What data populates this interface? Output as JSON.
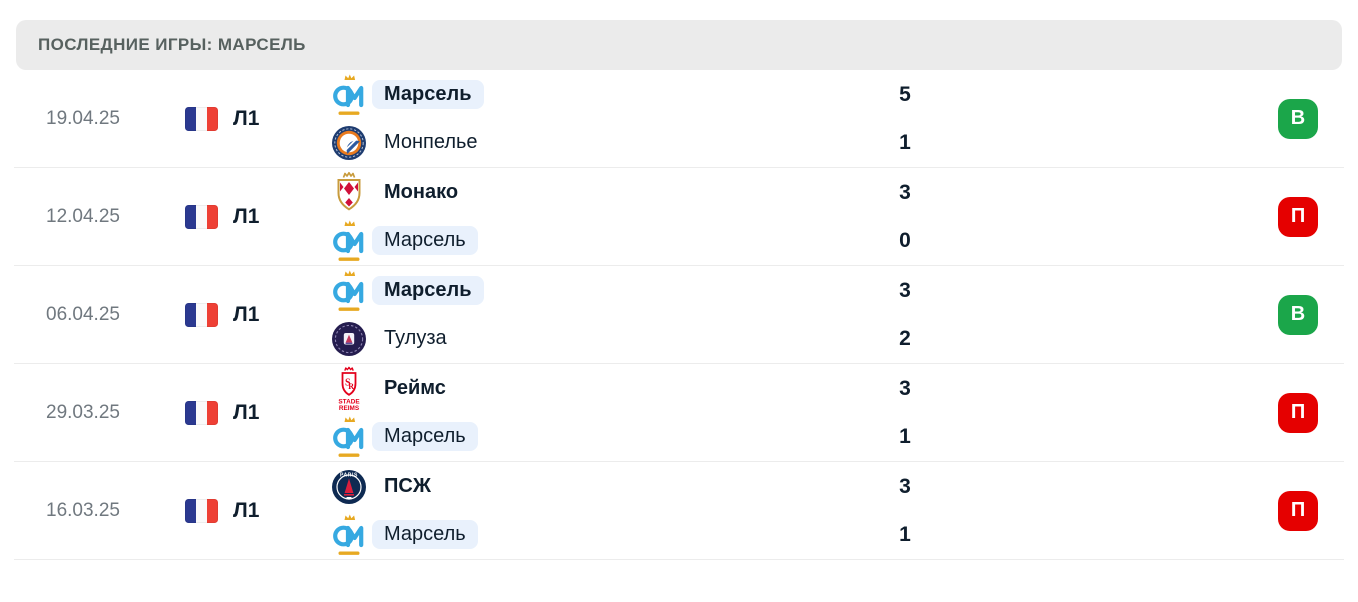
{
  "header": {
    "title": "ПОСЛЕДНИЕ ИГРЫ: МАРСЕЛЬ"
  },
  "colors": {
    "win_badge": "#1BA64A",
    "loss_badge": "#E50000",
    "marseille_highlight": "#E9F1FC",
    "header_bg": "#EBEBEB",
    "text_dark": "#0F1E2D",
    "text_date": "#70787F"
  },
  "matches": [
    {
      "date": "19.04.25",
      "league": {
        "label": "Л1",
        "flag_icon": "france-flag"
      },
      "teams": [
        {
          "name": "Марсель",
          "logo_icon": "marseille-logo",
          "score": "5",
          "winner": true,
          "highlighted": true
        },
        {
          "name": "Монпелье",
          "logo_icon": "montpellier-logo",
          "score": "1",
          "winner": false,
          "highlighted": false
        }
      ],
      "result": {
        "label": "В",
        "type": "win"
      }
    },
    {
      "date": "12.04.25",
      "league": {
        "label": "Л1",
        "flag_icon": "france-flag"
      },
      "teams": [
        {
          "name": "Монако",
          "logo_icon": "monaco-logo",
          "score": "3",
          "winner": true,
          "highlighted": false
        },
        {
          "name": "Марсель",
          "logo_icon": "marseille-logo",
          "score": "0",
          "winner": false,
          "highlighted": true
        }
      ],
      "result": {
        "label": "П",
        "type": "loss"
      }
    },
    {
      "date": "06.04.25",
      "league": {
        "label": "Л1",
        "flag_icon": "france-flag"
      },
      "teams": [
        {
          "name": "Марсель",
          "logo_icon": "marseille-logo",
          "score": "3",
          "winner": true,
          "highlighted": true
        },
        {
          "name": "Тулуза",
          "logo_icon": "toulouse-logo",
          "score": "2",
          "winner": false,
          "highlighted": false
        }
      ],
      "result": {
        "label": "В",
        "type": "win"
      }
    },
    {
      "date": "29.03.25",
      "league": {
        "label": "Л1",
        "flag_icon": "france-flag"
      },
      "teams": [
        {
          "name": "Реймс",
          "logo_icon": "reims-logo",
          "score": "3",
          "winner": true,
          "highlighted": false
        },
        {
          "name": "Марсель",
          "logo_icon": "marseille-logo",
          "score": "1",
          "winner": false,
          "highlighted": true
        }
      ],
      "result": {
        "label": "П",
        "type": "loss"
      }
    },
    {
      "date": "16.03.25",
      "league": {
        "label": "Л1",
        "flag_icon": "france-flag"
      },
      "teams": [
        {
          "name": "ПСЖ",
          "logo_icon": "psg-logo",
          "score": "3",
          "winner": true,
          "highlighted": false
        },
        {
          "name": "Марсель",
          "logo_icon": "marseille-logo",
          "score": "1",
          "winner": false,
          "highlighted": true
        }
      ],
      "result": {
        "label": "П",
        "type": "loss"
      }
    }
  ]
}
